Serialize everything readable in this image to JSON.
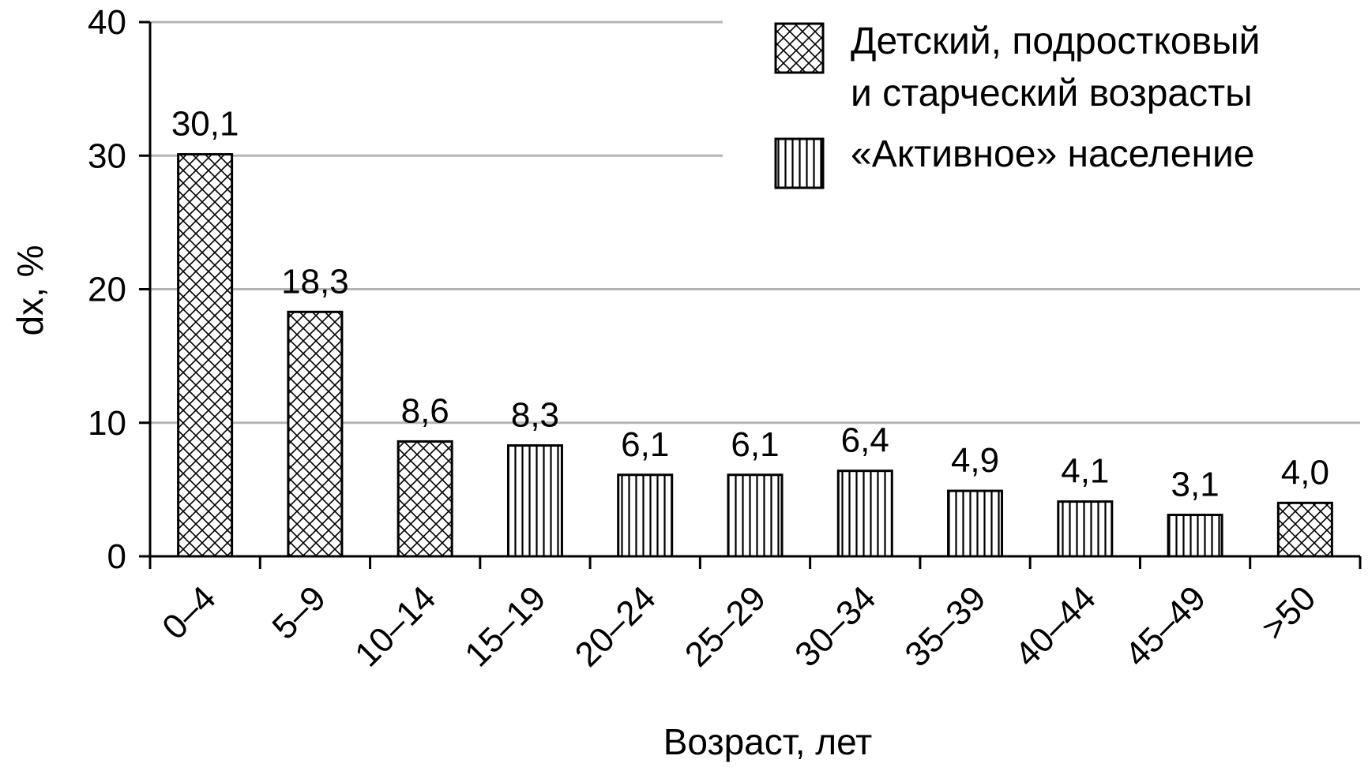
{
  "chart_data": {
    "type": "bar",
    "categories": [
      "0–4",
      "5–9",
      "10–14",
      "15–19",
      "20–24",
      "25–29",
      "30–34",
      "35–39",
      "40–44",
      "45–49",
      ">50"
    ],
    "values": [
      30.1,
      18.3,
      8.6,
      8.3,
      6.1,
      6.1,
      6.4,
      4.9,
      4.1,
      3.1,
      4.0
    ],
    "value_labels": [
      "30,1",
      "18,3",
      "8,6",
      "8,3",
      "6,1",
      "6,1",
      "6,4",
      "4,9",
      "4,1",
      "3,1",
      "4,0"
    ],
    "groups": [
      "childhood",
      "childhood",
      "childhood",
      "active",
      "active",
      "active",
      "active",
      "active",
      "active",
      "active",
      "childhood"
    ],
    "title": "",
    "xlabel": "Возраст, лет",
    "ylabel": "dx, %",
    "ylim": [
      0,
      40
    ],
    "yticks": [
      0,
      10,
      20,
      30,
      40
    ],
    "grid": true,
    "legend": {
      "position": "top-right",
      "entries": [
        {
          "key": "childhood",
          "pattern": "crosshatch",
          "lines": [
            "Детский, подростковый",
            "и старческий возрасты"
          ]
        },
        {
          "key": "active",
          "pattern": "vertical-stripes",
          "lines": [
            "«Активное» население"
          ]
        }
      ]
    },
    "colors": {
      "bar_stroke": "#000000",
      "grid": "#b4b4b4",
      "fill": "#ffffff"
    }
  }
}
